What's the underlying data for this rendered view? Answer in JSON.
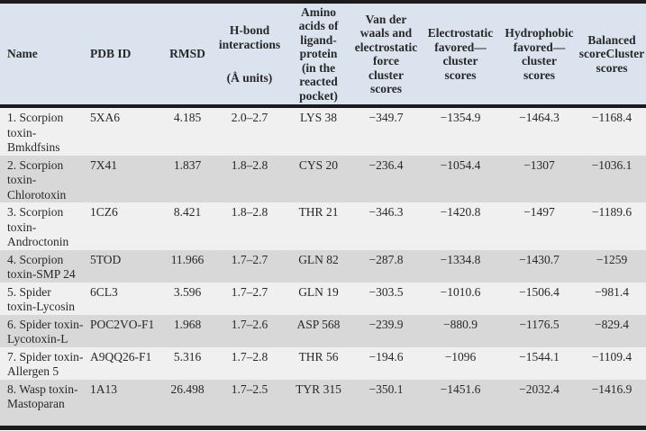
{
  "table": {
    "headers": [
      {
        "label": "Name"
      },
      {
        "label": "PDB ID"
      },
      {
        "label": "RMSD"
      },
      {
        "label": "H-bond\ninteractions",
        "sublabel": "(Å units)"
      },
      {
        "label": "Amino\nacids of\nligand-\nprotein\n(in the\nreacted\npocket)"
      },
      {
        "label": "Van der\nwaals and\nelectrostatic\nforce\ncluster\nscores"
      },
      {
        "label": "Electrostatic\nfavored—\ncluster\nscores"
      },
      {
        "label": "Hydrophobic\nfavored—\ncluster\nscores"
      },
      {
        "label": "Balanced\nscoreCluster\nscores"
      }
    ],
    "rows": [
      {
        "name": "1. Scorpion\ntoxin-\nBmkdfsins",
        "pdb_id": "5XA6",
        "rmsd": "4.185",
        "hbond_interactions": "2.0–2.7",
        "amino_acid": "LYS 38",
        "vdw_electrostatic_score": "−349.7",
        "electrostatic_favored_score": "−1354.9",
        "hydrophobic_favored_score": "−1464.3",
        "balanced_score": "−1168.4"
      },
      {
        "name": "2. Scorpion\ntoxin-\nChlorotoxin",
        "pdb_id": "7X41",
        "rmsd": "1.837",
        "hbond_interactions": "1.8–2.8",
        "amino_acid": "CYS 20",
        "vdw_electrostatic_score": "−236.4",
        "electrostatic_favored_score": "−1054.4",
        "hydrophobic_favored_score": "−1307",
        "balanced_score": "−1036.1"
      },
      {
        "name": "3. Scorpion\ntoxin-\nAndroctonin",
        "pdb_id": "1CZ6",
        "rmsd": "8.421",
        "hbond_interactions": "1.8–2.8",
        "amino_acid": "THR 21",
        "vdw_electrostatic_score": "−346.3",
        "electrostatic_favored_score": "−1420.8",
        "hydrophobic_favored_score": "−1497",
        "balanced_score": "−1189.6"
      },
      {
        "name": "4. Scorpion\ntoxin-SMP 24",
        "pdb_id": "5TOD",
        "rmsd": "11.966",
        "hbond_interactions": "1.7–2.7",
        "amino_acid": "GLN 82",
        "vdw_electrostatic_score": "−287.8",
        "electrostatic_favored_score": "−1334.8",
        "hydrophobic_favored_score": "−1430.7",
        "balanced_score": "−1259"
      },
      {
        "name": "5. Spider\ntoxin-Lycosin",
        "pdb_id": "6CL3",
        "rmsd": "3.596",
        "hbond_interactions": "1.7–2.7",
        "amino_acid": "GLN 19",
        "vdw_electrostatic_score": "−303.5",
        "electrostatic_favored_score": "−1010.6",
        "hydrophobic_favored_score": "−1506.4",
        "balanced_score": "−981.4"
      },
      {
        "name": "6. Spider toxin-\nLycotoxin-L",
        "pdb_id": "POC2VO-F1",
        "rmsd": "1.968",
        "hbond_interactions": "1.7–2.6",
        "amino_acid": "ASP 568",
        "vdw_electrostatic_score": "−239.9",
        "electrostatic_favored_score": "−880.9",
        "hydrophobic_favored_score": "−1176.5",
        "balanced_score": "−829.4"
      },
      {
        "name": "7. Spider toxin-\nAllergen 5",
        "pdb_id": "A9QQ26-F1",
        "rmsd": "5.316",
        "hbond_interactions": "1.7–2.8",
        "amino_acid": "THR 56",
        "vdw_electrostatic_score": "−194.6",
        "electrostatic_favored_score": "−1096",
        "hydrophobic_favored_score": "−1544.1",
        "balanced_score": "−1109.4"
      },
      {
        "name": "8. Wasp toxin-\nMastoparan",
        "pdb_id": "1A13",
        "rmsd": "26.498",
        "hbond_interactions": "1.7–2.5",
        "amino_acid": "TYR 315",
        "vdw_electrostatic_score": "−350.1",
        "electrostatic_favored_score": "−1451.6",
        "hydrophobic_favored_score": "−2032.4",
        "balanced_score": "−1416.9"
      }
    ],
    "colors": {
      "header_background": "#dbe4ee",
      "row_odd_background": "#f0f0f1",
      "row_even_background": "#d8d8d8",
      "rule_color": "#1b1b1b",
      "text_color": "#282828"
    }
  }
}
